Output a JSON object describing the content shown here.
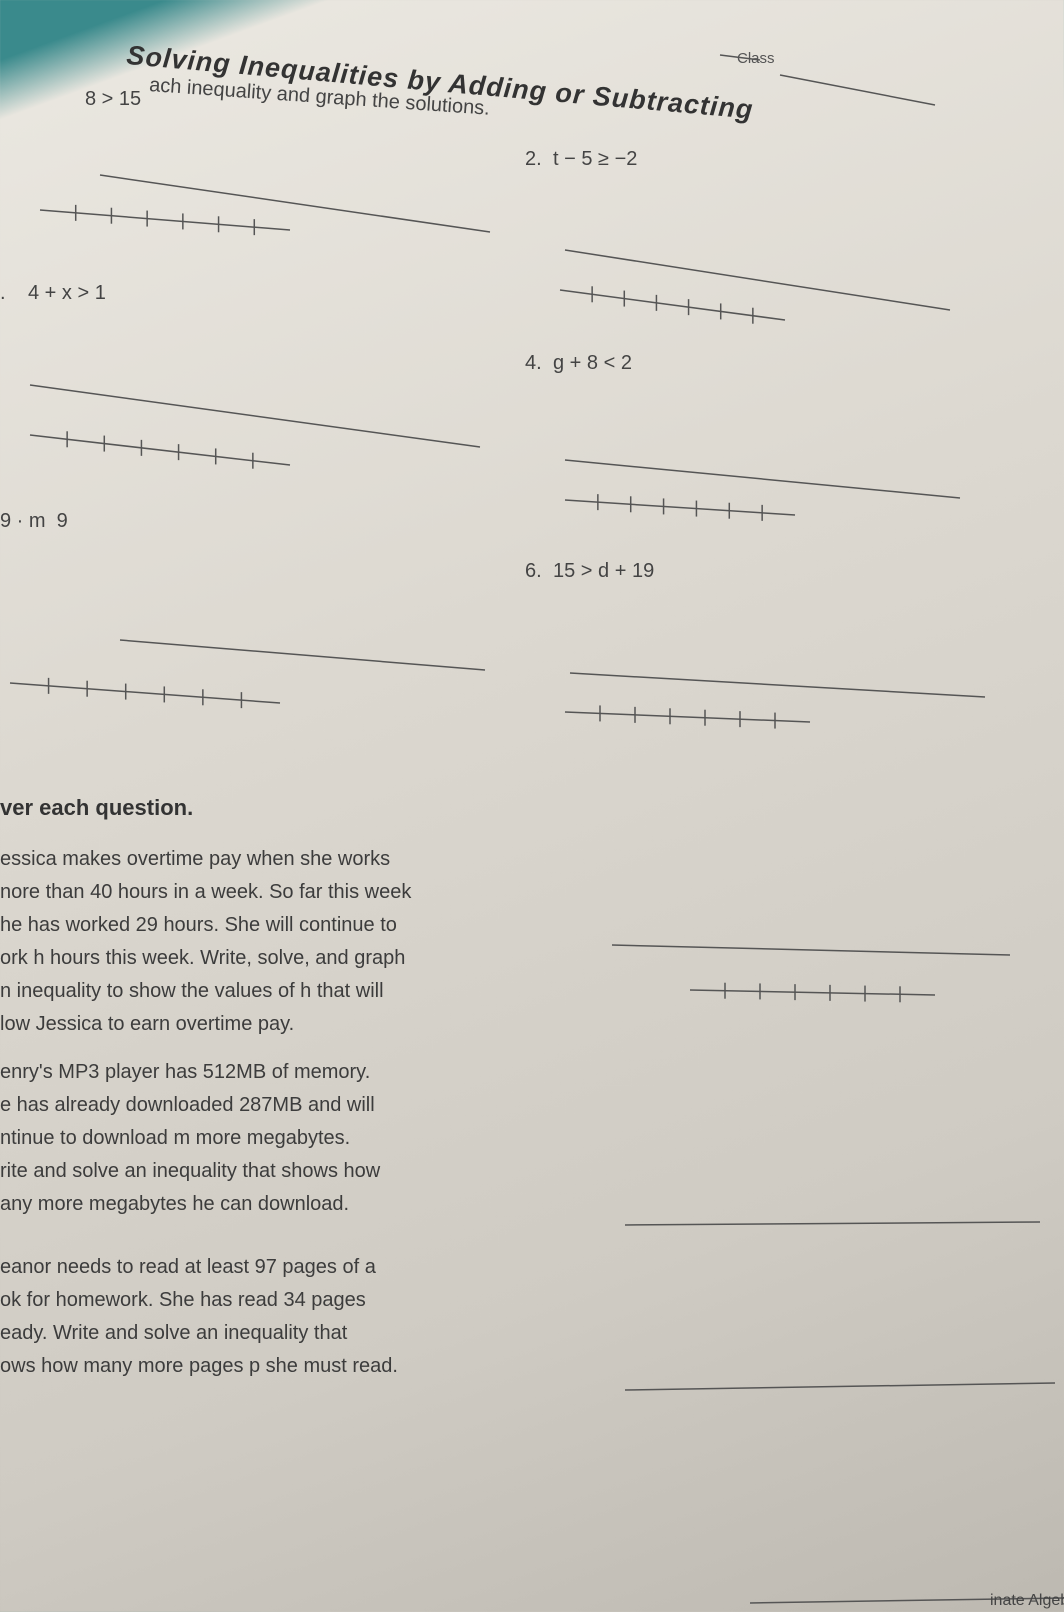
{
  "header": {
    "title": "Solving Inequalities by Adding or Subtracting",
    "class_label": "Class",
    "instructions": "ach inequality and graph the solutions."
  },
  "problems": [
    {
      "text": "8 > 15"
    },
    {
      "number": "2.",
      "text": "t − 5 ≥ −2"
    },
    {
      "number": ".",
      "text": "4 + x > 1"
    },
    {
      "number": "4.",
      "text": "g + 8 < 2"
    },
    {
      "text": "9 · m  9"
    },
    {
      "number": "6.",
      "text": "15 > d + 19"
    }
  ],
  "section_heading": "ver each question.",
  "word_problems": [
    {
      "lines": [
        "essica makes overtime pay when she works",
        "nore than 40 hours in a week. So far this week",
        "he has worked 29 hours. She will continue to",
        "ork h hours this week. Write, solve, and graph",
        "n inequality to show the values of h that will",
        "low Jessica to earn overtime pay."
      ]
    },
    {
      "lines": [
        "enry's MP3 player has 512MB of memory.",
        "e has already downloaded 287MB and will",
        "ntinue to download m more megabytes.",
        "rite and solve an inequality that shows how",
        "any more megabytes he can download."
      ]
    },
    {
      "lines": [
        "eanor needs to read at least 97 pages of a",
        "ok for homework. She has read 34 pages",
        "eady. Write and solve an inequality that",
        "ows how many more pages p she must read."
      ]
    }
  ],
  "footer": "inate Algeb"
}
